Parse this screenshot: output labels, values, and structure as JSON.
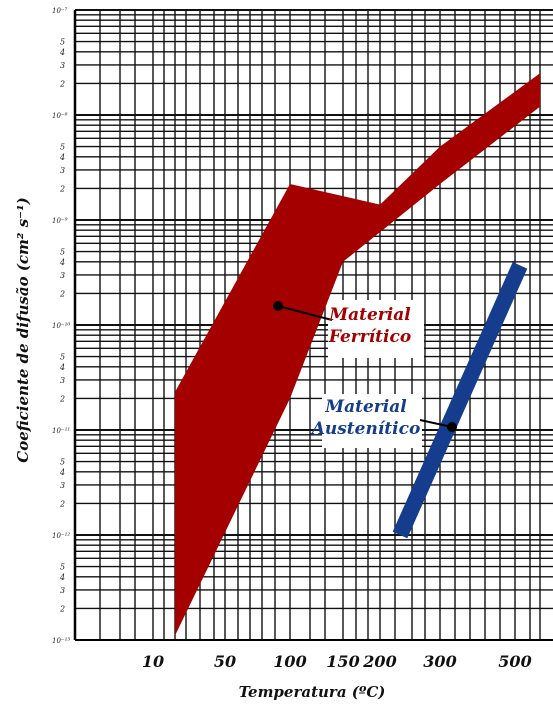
{
  "chart_data": {
    "type": "area",
    "ylabel": "Coeficiente de difusão (cm² s⁻¹)",
    "xlabel": "Temperatura (ºC)",
    "x_tick_labels": [
      "10",
      "50",
      "100",
      "150",
      "200",
      "300",
      "500"
    ],
    "y_decade_labels": [
      "10⁻⁷",
      "10⁻⁸",
      "10⁻⁹",
      "10⁻¹⁰",
      "10⁻¹¹",
      "10⁻¹²",
      "10⁻¹³"
    ],
    "y_minor_labels": [
      "5",
      "4",
      "3",
      "2"
    ],
    "ylim": [
      1e-13,
      1e-07
    ],
    "y_scale": "log",
    "grid": true,
    "series": [
      {
        "name": "Material Ferrítico",
        "color": "#a50000",
        "upper": [
          [
            20,
            2.3e-11
          ],
          [
            100,
            2.2e-09
          ],
          [
            200,
            1.4e-09
          ],
          [
            300,
            5e-09
          ],
          [
            600,
            2.5e-08
          ]
        ],
        "lower": [
          [
            20,
            1.1e-13
          ],
          [
            100,
            2e-11
          ],
          [
            150,
            4e-10
          ],
          [
            300,
            2.2e-09
          ],
          [
            600,
            1.2e-08
          ]
        ]
      },
      {
        "name": "Material Austenítico",
        "color": "#163c8e",
        "line": [
          [
            220,
            1e-12
          ],
          [
            540,
            3.7e-10
          ]
        ]
      }
    ],
    "annotations": [
      {
        "series": "Material Ferrítico",
        "lines": [
          "Material",
          "Ferrítico"
        ],
        "point": [
          90,
          1.7e-10
        ]
      },
      {
        "series": "Material Austenítico",
        "lines": [
          "Material",
          "Austenítico"
        ],
        "point": [
          320,
          1.1e-11
        ]
      }
    ]
  }
}
